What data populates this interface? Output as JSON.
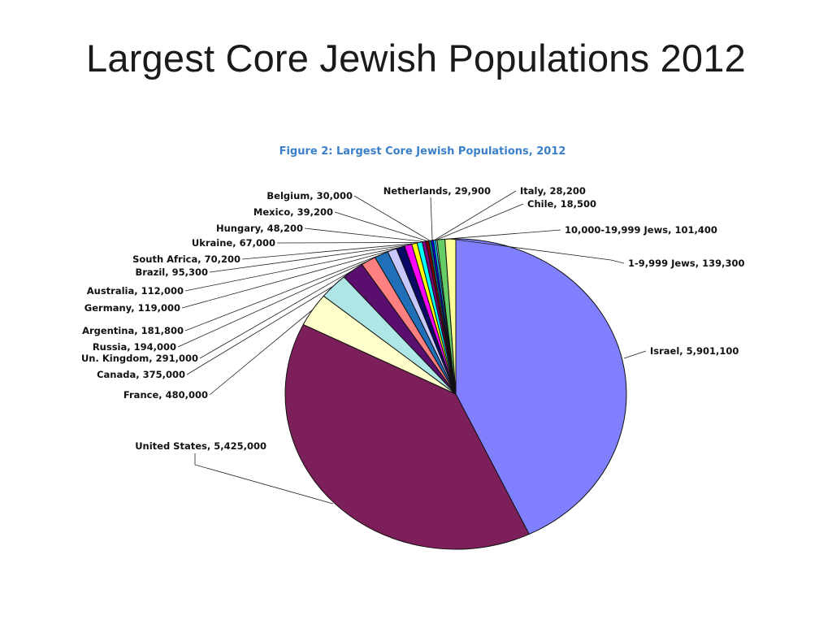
{
  "slide": {
    "title": "Largest Core Jewish Populations 2012"
  },
  "chart_data": {
    "type": "pie",
    "title": "Figure 2: Largest Core Jewish Populations, 2012",
    "start": "top, clockwise",
    "slices": [
      {
        "label": "Israel, 5,901,100",
        "name": "Israel",
        "value": 5901100,
        "color": "#8080ff"
      },
      {
        "label": "United States, 5,425,000",
        "name": "United States",
        "value": 5425000,
        "color": "#7d1f5a"
      },
      {
        "label": "France, 480,000",
        "name": "France",
        "value": 480000,
        "color": "#ffffcc"
      },
      {
        "label": "Canada, 375,000",
        "name": "Canada",
        "value": 375000,
        "color": "#aee6e6"
      },
      {
        "label": "Un. Kingdom, 291,000",
        "name": "Un. Kingdom",
        "value": 291000,
        "color": "#5a0f6e"
      },
      {
        "label": "Russia, 194,000",
        "name": "Russia",
        "value": 194000,
        "color": "#ff8080"
      },
      {
        "label": "Argentina, 181,800",
        "name": "Argentina",
        "value": 181800,
        "color": "#1f70b8"
      },
      {
        "label": "Germany, 119,000",
        "name": "Germany",
        "value": 119000,
        "color": "#c8c8ff"
      },
      {
        "label": "Australia, 112,000",
        "name": "Australia",
        "value": 112000,
        "color": "#0a0a66"
      },
      {
        "label": "Brazil, 95,300",
        "name": "Brazil",
        "value": 95300,
        "color": "#ff00ff"
      },
      {
        "label": "South Africa, 70,200",
        "name": "South Africa",
        "value": 70200,
        "color": "#ffff00"
      },
      {
        "label": "Ukraine, 67,000",
        "name": "Ukraine",
        "value": 67000,
        "color": "#00ffff"
      },
      {
        "label": "Hungary, 48,200",
        "name": "Hungary",
        "value": 48200,
        "color": "#800080"
      },
      {
        "label": "Mexico, 39,200",
        "name": "Mexico",
        "value": 39200,
        "color": "#800000"
      },
      {
        "label": "Belgium, 30,000",
        "name": "Belgium",
        "value": 30000,
        "color": "#008080"
      },
      {
        "label": "Netherlands, 29,900",
        "name": "Netherlands",
        "value": 29900,
        "color": "#0000ff"
      },
      {
        "label": "Italy, 28,200",
        "name": "Italy",
        "value": 28200,
        "color": "#00ccff"
      },
      {
        "label": "Chile, 18,500",
        "name": "Chile",
        "value": 18500,
        "color": "#ccffff"
      },
      {
        "label": "10,000-19,999 Jews, 101,400",
        "name": "10,000-19,999 Jews",
        "value": 101400,
        "color": "#66cc66"
      },
      {
        "label": "1-9,999 Jews, 139,300",
        "name": "1-9,999 Jews",
        "value": 139300,
        "color": "#ffff99"
      }
    ]
  }
}
